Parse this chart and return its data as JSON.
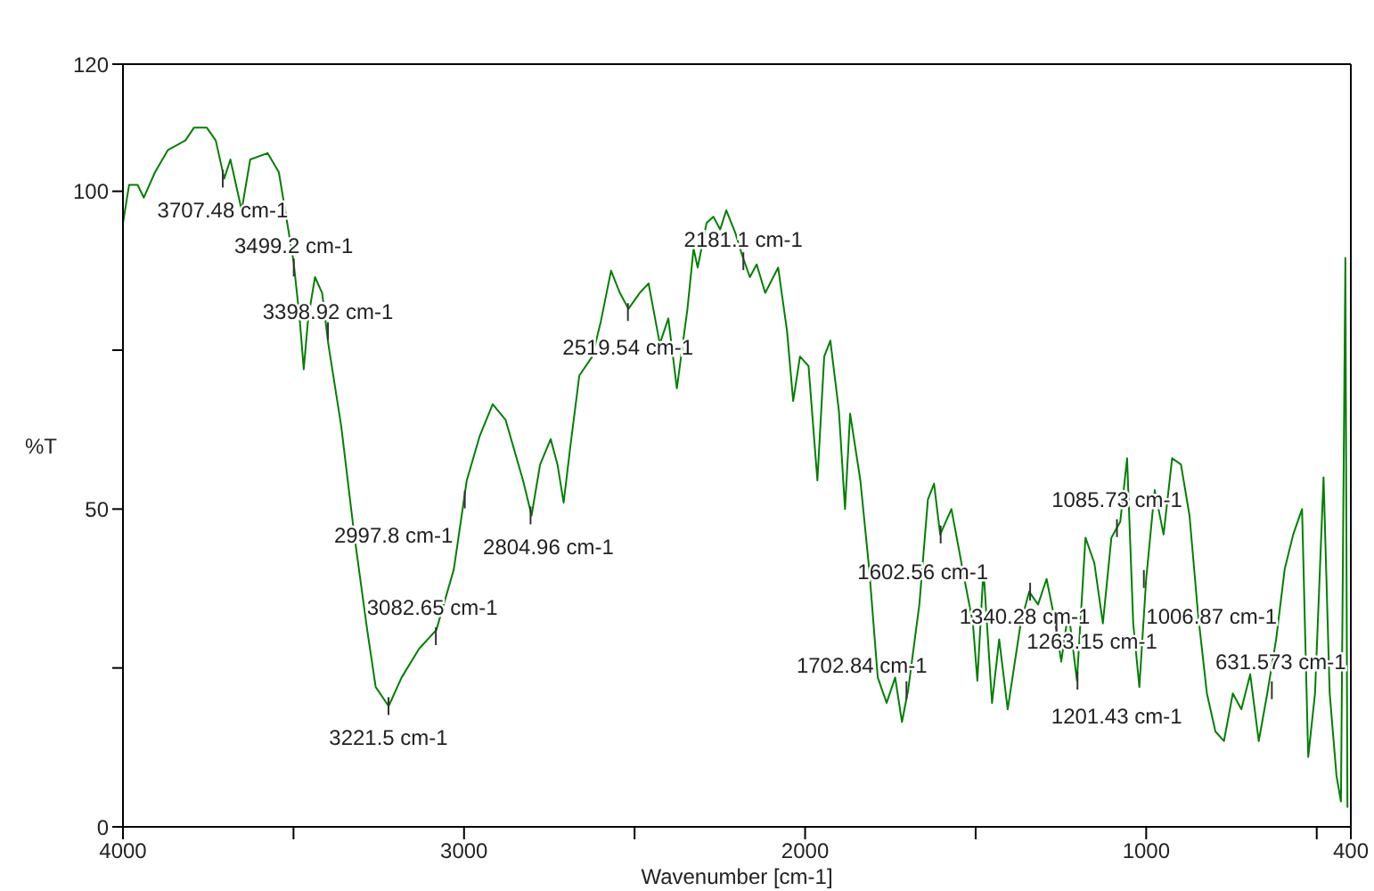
{
  "chart_data": {
    "type": "line",
    "xlabel": "Wavenumber [cm-1]",
    "ylabel": "%T",
    "xlim": [
      4000,
      400
    ],
    "ylim": [
      0,
      120
    ],
    "xticks": [
      4000,
      {
        "value": 3500,
        "label": null
      },
      3000,
      {
        "value": 2500,
        "label": null
      },
      2000,
      {
        "value": 1500,
        "label": null
      },
      1000,
      {
        "value": 500,
        "label": null
      },
      400
    ],
    "yticks": [
      0,
      {
        "value": 25,
        "label": null
      },
      50,
      {
        "value": 75,
        "label": null
      },
      100,
      120
    ],
    "series": [
      {
        "color": "#008000",
        "x": [
          4000,
          3982,
          3957,
          3939,
          3906,
          3868,
          3817,
          3792,
          3754,
          3728,
          3703,
          3685,
          3652,
          3627,
          3576,
          3543,
          3500,
          3482,
          3470,
          3457,
          3437,
          3416,
          3398,
          3360,
          3322,
          3284,
          3259,
          3221,
          3183,
          3132,
          3081,
          3030,
          2992,
          2954,
          2916,
          2878,
          2827,
          2802,
          2777,
          2746,
          2726,
          2708,
          2688,
          2662,
          2624,
          2599,
          2569,
          2543,
          2518,
          2485,
          2459,
          2426,
          2401,
          2376,
          2345,
          2327,
          2315,
          2289,
          2269,
          2249,
          2231,
          2205,
          2185,
          2162,
          2142,
          2117,
          2079,
          2053,
          2035,
          2015,
          1990,
          1964,
          1944,
          1926,
          1901,
          1883,
          1868,
          1838,
          1812,
          1787,
          1761,
          1736,
          1716,
          1698,
          1665,
          1640,
          1622,
          1604,
          1571,
          1533,
          1508,
          1495,
          1477,
          1452,
          1431,
          1406,
          1368,
          1343,
          1317,
          1292,
          1266,
          1249,
          1228,
          1203,
          1178,
          1152,
          1127,
          1102,
          1076,
          1056,
          1038,
          1020,
          1000,
          975,
          949,
          924,
          898,
          873,
          848,
          822,
          797,
          772,
          746,
          721,
          695,
          670,
          645,
          619,
          594,
          569,
          543,
          525,
          505,
          480,
          462,
          442,
          429,
          416,
          410
        ],
        "values": [
          95,
          101,
          101,
          99,
          103,
          106.5,
          108,
          110,
          110,
          108,
          102,
          105,
          97,
          105,
          106,
          103,
          89,
          80,
          72,
          80,
          86.5,
          84,
          76,
          63,
          46,
          31,
          22,
          19,
          23.5,
          28,
          31,
          40.5,
          54.5,
          61.5,
          66.5,
          64,
          54.5,
          49,
          57,
          61,
          57,
          51,
          60,
          71,
          74,
          79.5,
          87.5,
          84,
          81.5,
          84,
          85.5,
          76,
          80,
          69,
          81.5,
          91,
          88,
          95,
          96,
          94,
          97,
          93.5,
          90,
          86.5,
          88.5,
          84,
          88,
          78,
          67,
          74,
          72.5,
          54.5,
          74,
          76.5,
          65.5,
          50,
          65,
          54.5,
          40.5,
          23.5,
          19.5,
          23.5,
          16.5,
          21.5,
          35,
          51.5,
          54,
          46,
          50,
          39,
          32,
          23,
          40.5,
          19.5,
          29.5,
          18.5,
          32,
          37,
          35,
          39,
          32,
          26,
          34,
          23,
          45.5,
          41.5,
          32,
          45.5,
          48,
          58,
          32,
          22,
          39,
          53,
          46,
          58,
          57,
          49,
          33.5,
          21,
          15,
          13.5,
          21,
          18.5,
          24,
          13.5,
          21,
          29.5,
          40.5,
          46,
          50,
          11,
          21,
          55,
          21,
          8,
          4,
          89.5,
          3
        ]
      }
    ],
    "annotations": [
      {
        "text": "3707.48 cm-1",
        "x": 3707.48,
        "y": 102
      },
      {
        "text": "3499.2 cm-1",
        "x": 3499.2,
        "y": 88
      },
      {
        "text": "3398.92 cm-1",
        "x": 3398.92,
        "y": 78
      },
      {
        "text": "3221.5 cm-1",
        "x": 3221.5,
        "y": 19
      },
      {
        "text": "3082.65 cm-1",
        "x": 3082.65,
        "y": 30
      },
      {
        "text": "2997.8 cm-1",
        "x": 2997.8,
        "y": 51.5
      },
      {
        "text": "2804.96 cm-1",
        "x": 2804.96,
        "y": 49
      },
      {
        "text": "2519.54 cm-1",
        "x": 2519.54,
        "y": 81
      },
      {
        "text": "2181.1 cm-1",
        "x": 2181.1,
        "y": 89
      },
      {
        "text": "1702.84 cm-1",
        "x": 1702.84,
        "y": 21.5
      },
      {
        "text": "1602.56 cm-1",
        "x": 1602.56,
        "y": 46
      },
      {
        "text": "1340.28 cm-1",
        "x": 1340.28,
        "y": 37
      },
      {
        "text": "1263.15 cm-1",
        "x": 1263.15,
        "y": 32
      },
      {
        "text": "1201.43 cm-1",
        "x": 1201.43,
        "y": 23
      },
      {
        "text": "1085.73 cm-1",
        "x": 1085.73,
        "y": 47
      },
      {
        "text": "1006.87 cm-1",
        "x": 1006.87,
        "y": 39
      },
      {
        "text": "631.573 cm-1",
        "x": 631.573,
        "y": 21.5
      }
    ]
  }
}
